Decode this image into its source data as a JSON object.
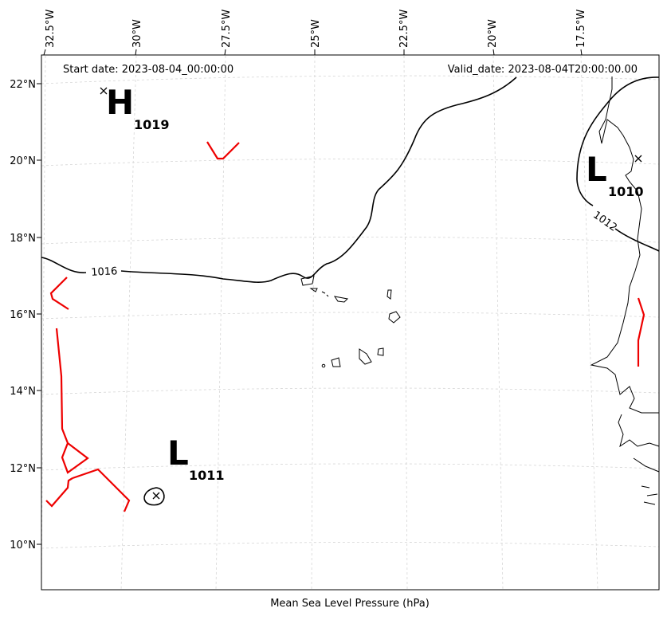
{
  "header": {
    "start_date": "Start date: 2023-08-04_00:00:00",
    "valid_date": "Valid_date: 2023-08-04T20:00:00.00"
  },
  "footer": {
    "xlabel": "Mean Sea Level Pressure (hPa)"
  },
  "axes": {
    "top_lon_labels": [
      "32.5°W",
      "30°W",
      "27.5°W",
      "25°W",
      "22.5°W",
      "20°W",
      "17.5°W"
    ],
    "left_lat_labels": [
      "22°N",
      "20°N",
      "18°N",
      "16°N",
      "14°N",
      "12°N",
      "10°N"
    ]
  },
  "pressure_centers": [
    {
      "type": "H",
      "value": "1019"
    },
    {
      "type": "L",
      "value": "1011"
    },
    {
      "type": "L",
      "value": "1010"
    }
  ],
  "isobars": [
    {
      "label": "1016"
    },
    {
      "label": "1012"
    }
  ],
  "colors": {
    "front": "#ee0000",
    "isobar": "#000000",
    "grid": "#cccccc",
    "coast": "#000000"
  }
}
